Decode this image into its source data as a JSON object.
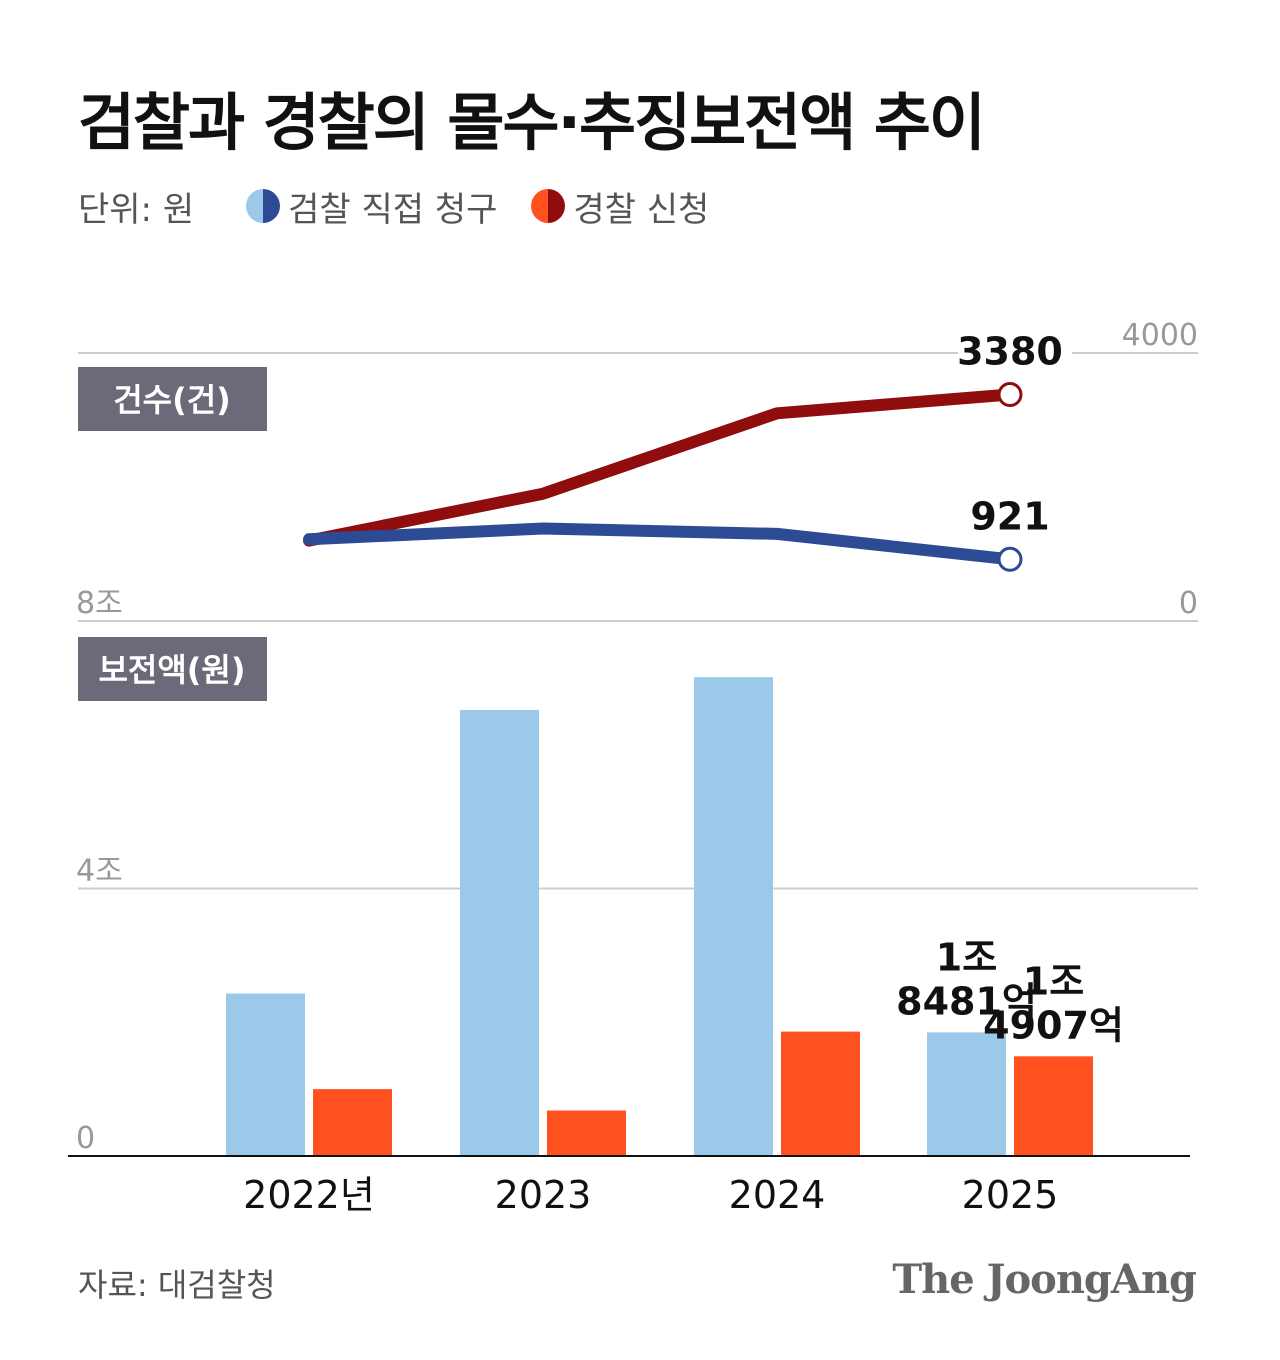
{
  "title": "검찰과 경찰의 몰수·추징보전액 추이",
  "legend": {
    "unit": "단위: 원",
    "items": [
      {
        "label": "검찰 직접 청구",
        "light": "#9cc8ea",
        "dark": "#2d4b94"
      },
      {
        "label": "경찰 신청",
        "light": "#ff5220",
        "dark": "#8f0d0d"
      }
    ]
  },
  "colors": {
    "prosecution_line": "#2d4b94",
    "police_line": "#8f0d0d",
    "prosecution_bar": "#9cc8ea",
    "police_bar": "#ff5220",
    "badge_bg": "#6a6a78",
    "grid": "#cccccc",
    "axis_text": "#999999"
  },
  "source": "자료: 대검찰청",
  "brand": "The JoongAng",
  "chart_data": [
    {
      "type": "line",
      "badge": "건수(건)",
      "x": [
        "2022",
        "2023",
        "2024",
        "2025"
      ],
      "ylim": [
        0,
        4000
      ],
      "yticks": [
        "0",
        "4000"
      ],
      "series": [
        {
          "name": "검찰 직접 청구",
          "values": [
            1220,
            1380,
            1300,
            921
          ],
          "end_label": "921"
        },
        {
          "name": "경찰 신청",
          "values": [
            1200,
            1900,
            3100,
            3380
          ],
          "end_label": "3380"
        }
      ]
    },
    {
      "type": "bar",
      "badge": "보전액(원)",
      "categories": [
        "2022년",
        "2023",
        "2024",
        "2025"
      ],
      "ylim": [
        0,
        8
      ],
      "yticks": [
        "0",
        "4조",
        "8조"
      ],
      "series": [
        {
          "name": "검찰 직접 청구",
          "values": [
            2.43,
            6.67,
            7.16,
            1.8481
          ],
          "last_label": [
            "1조",
            "8481억"
          ]
        },
        {
          "name": "경찰 신청",
          "values": [
            1.0,
            0.68,
            1.86,
            1.4907
          ],
          "last_label": [
            "1조",
            "4907억"
          ]
        }
      ]
    }
  ]
}
